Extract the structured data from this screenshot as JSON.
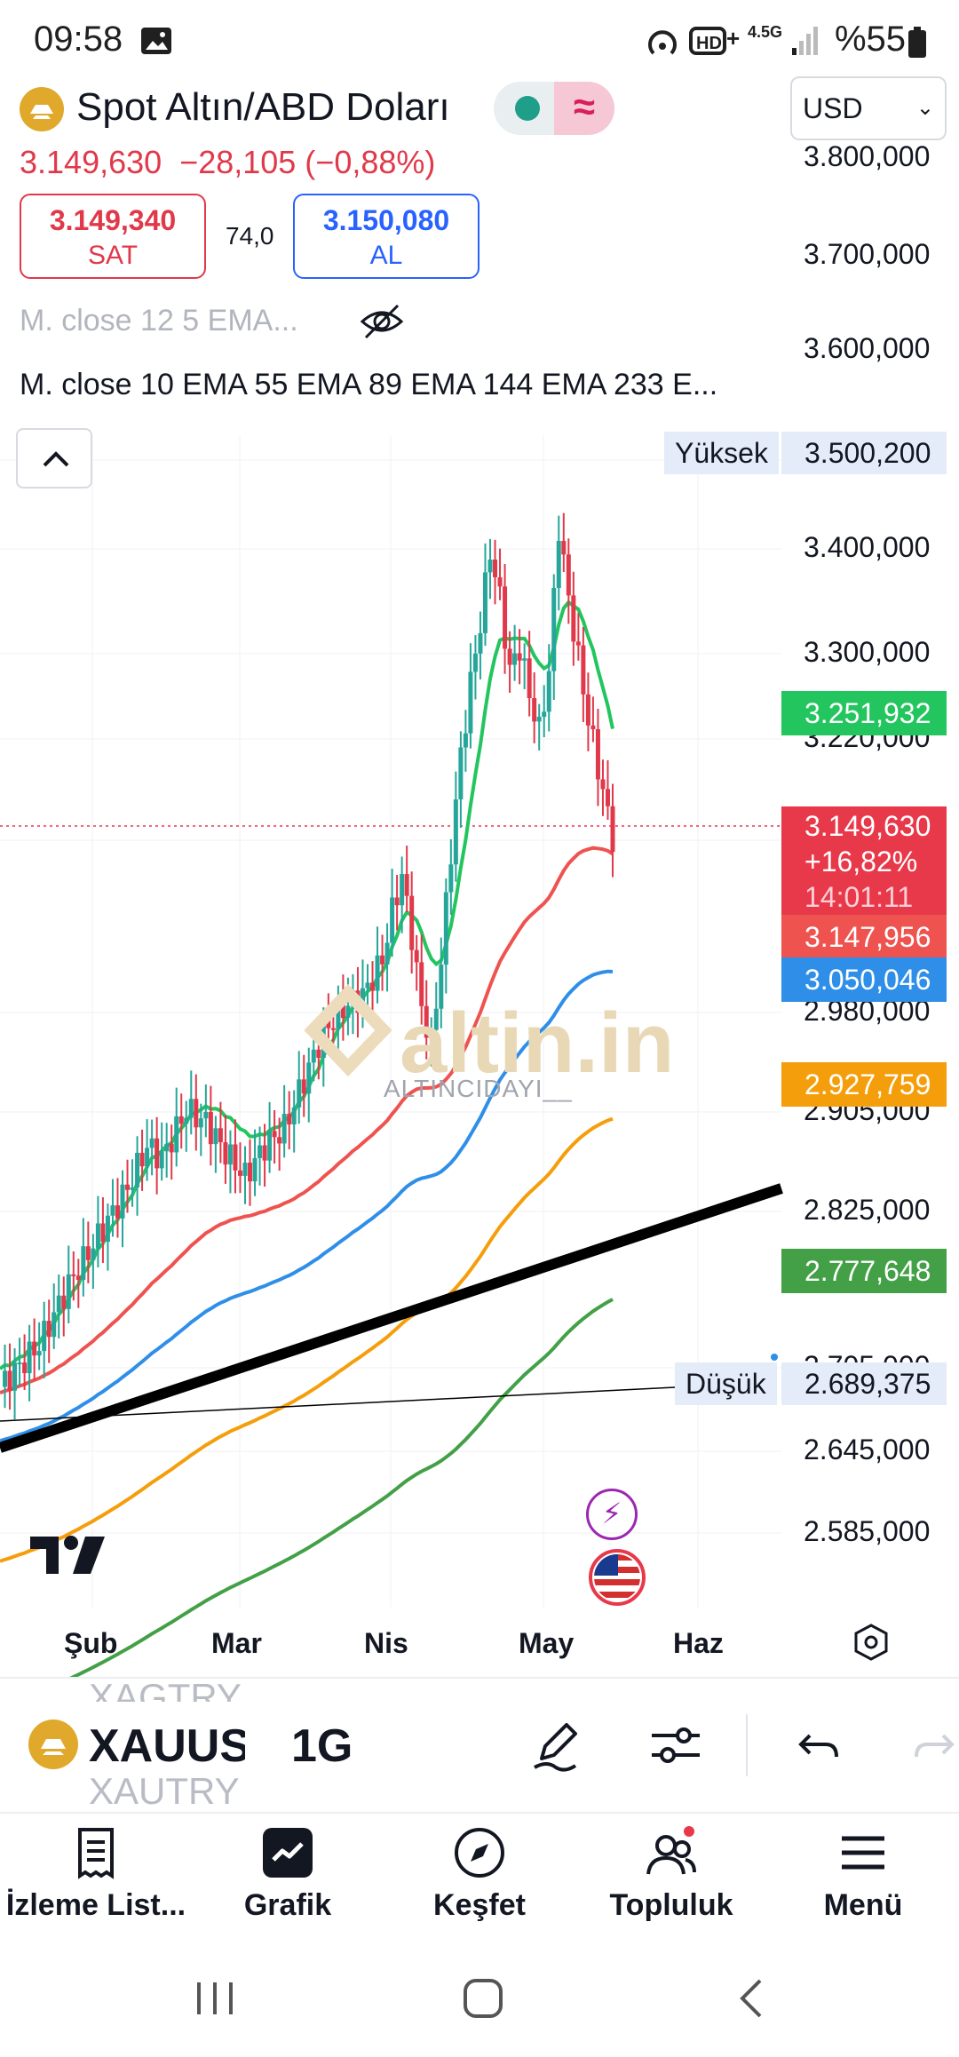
{
  "status_bar": {
    "time": "09:58",
    "network": "4.5G",
    "battery": "%55"
  },
  "header": {
    "title": "Spot Altın/ABD Doları",
    "currency": "USD",
    "last_price": "3.149,630",
    "change": "−28,105 (−0,88%)",
    "sell": {
      "price": "3.149,340",
      "label": "SAT"
    },
    "spread": "74,0",
    "buy": {
      "price": "3.150,080",
      "label": "AL"
    }
  },
  "indicators": {
    "hidden_line": "M. close 12 5 EMA...",
    "visible_line": "M. close 10 EMA 55 EMA 89 EMA 144 EMA 233 E..."
  },
  "chart": {
    "high_label": "Yüksek",
    "low_label": "Düşük",
    "watermark": "altin.in",
    "author": "ALTINCIDAYI__",
    "price_ticks": [
      "3.800,000",
      "3.700,000",
      "3.600,000",
      "3.400,000",
      "3.300,000",
      "3.220,000",
      "2.980,000",
      "2.905,000",
      "2.825,000",
      "2.705,000",
      "2.645,000",
      "2.585,000"
    ],
    "tags": {
      "high": "3.500,200",
      "ema_green": "3.251,932",
      "last_price": "3.149,630",
      "last_change": "+16,82%",
      "last_time": "14:01:11",
      "ema_red": "3.147,956",
      "ema_blue": "3.050,046",
      "ema_orange": "2.927,759",
      "ema_dkgreen": "2.777,648",
      "low": "2.689,375"
    },
    "time_labels": [
      "Şub",
      "Mar",
      "Nis",
      "May",
      "Haz"
    ],
    "colors": {
      "up": "#26a69a",
      "down": "#e0394a",
      "ema10": "#22c55e",
      "ema55": "#ef5350",
      "ema89": "#2f8fe8",
      "ema144": "#f59e0b",
      "ema233": "#43a047"
    }
  },
  "chart_data": {
    "type": "candlestick",
    "title": "Spot Altın/ABD Doları",
    "x_categories": [
      "Şub",
      "Mar",
      "Nis",
      "May",
      "Haz"
    ],
    "ylim": [
      2585,
      3800
    ],
    "series": [
      {
        "name": "EMA 10",
        "last_value": 3251.932
      },
      {
        "name": "EMA 55",
        "last_value": 3147.956
      },
      {
        "name": "EMA 89",
        "last_value": 3050.046
      },
      {
        "name": "EMA 144",
        "last_value": 2927.759
      },
      {
        "name": "EMA 233",
        "last_value": 2777.648
      }
    ],
    "high": 3500.2,
    "low": 2689.375,
    "last": 3149.63
  },
  "toolbar": {
    "symbol": "XAUUSD",
    "symbol_prev": "XAGTRY",
    "symbol_next": "XAUTRY",
    "interval": "1G"
  },
  "bottom_nav": [
    "İzleme List...",
    "Grafik",
    "Keşfet",
    "Topluluk",
    "Menü"
  ]
}
